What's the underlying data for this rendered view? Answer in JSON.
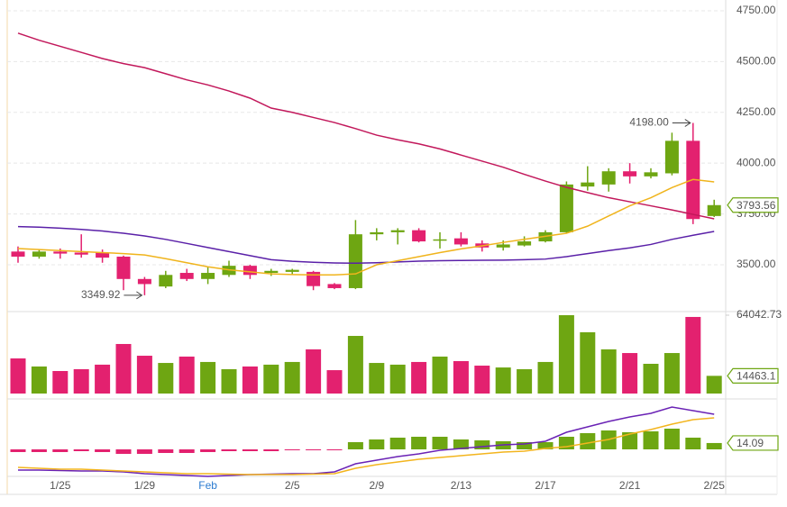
{
  "chart_data": [
    {
      "type": "candlestick",
      "categories": [
        null,
        null,
        "1/25",
        null,
        null,
        null,
        "1/29",
        null,
        null,
        "Feb",
        null,
        null,
        null,
        "2/5",
        null,
        null,
        null,
        "2/9",
        null,
        null,
        null,
        "2/13",
        null,
        null,
        null,
        "2/17",
        null,
        null,
        null,
        "2/21",
        null,
        null,
        null,
        "2/25"
      ],
      "month_label_color": "#2b7bd0",
      "open": [
        3565,
        3540,
        3565,
        3560,
        3560,
        3540,
        3430,
        3393,
        3460,
        3430,
        3450,
        3495,
        3460,
        3465,
        3465,
        3405,
        3385,
        3650,
        3660,
        3670,
        3620,
        3630,
        3605,
        3585,
        3595,
        3615,
        3660,
        3885,
        3895,
        3960,
        3935,
        3950,
        4110,
        3740
      ],
      "high": [
        3590,
        3575,
        3580,
        3650,
        3575,
        3545,
        3440,
        3470,
        3480,
        3490,
        3520,
        3500,
        3480,
        3480,
        3470,
        3410,
        3720,
        3680,
        3680,
        3680,
        3660,
        3660,
        3620,
        3620,
        3640,
        3670,
        3910,
        3985,
        3975,
        4000,
        3975,
        4150,
        4198,
        3820
      ],
      "low": [
        3510,
        3530,
        3530,
        3535,
        3510,
        3375,
        3349.92,
        3385,
        3420,
        3405,
        3440,
        3430,
        3445,
        3450,
        3375,
        3380,
        3380,
        3620,
        3600,
        3610,
        3580,
        3590,
        3565,
        3570,
        3590,
        3610,
        3655,
        3865,
        3860,
        3900,
        3925,
        3940,
        3700,
        3735
      ],
      "close": [
        3540,
        3565,
        3555,
        3550,
        3535,
        3430,
        3405,
        3450,
        3430,
        3460,
        3495,
        3450,
        3470,
        3475,
        3395,
        3385,
        3650,
        3660,
        3670,
        3615,
        3625,
        3600,
        3585,
        3600,
        3615,
        3660,
        3895,
        3905,
        3960,
        3935,
        3955,
        4110,
        3725,
        3793.56
      ],
      "up_color": "#6ea612",
      "down_color": "#e3216f",
      "series": [
        {
          "color": "#c2185b",
          "values": [
            4640,
            4605,
            4575,
            4545,
            4515,
            4490,
            4470,
            4440,
            4410,
            4385,
            4355,
            4320,
            4271,
            4250,
            4225,
            4200,
            4170,
            4138,
            4115,
            4095,
            4070,
            4040,
            4010,
            3980,
            3945,
            3912,
            3881,
            3855,
            3830,
            3810,
            3790,
            3770,
            3748,
            3726
          ]
        },
        {
          "color": "#5a20a8",
          "values": [
            3688,
            3685,
            3680,
            3674,
            3666,
            3655,
            3642,
            3625,
            3605,
            3585,
            3565,
            3545,
            3525,
            3517,
            3512,
            3509,
            3508,
            3510,
            3514,
            3518,
            3520,
            3521,
            3522,
            3523,
            3525,
            3528,
            3540,
            3555,
            3570,
            3583,
            3600,
            3625,
            3645,
            3664
          ]
        },
        {
          "color": "#f0b41c",
          "values": [
            3580,
            3575,
            3570,
            3565,
            3560,
            3555,
            3548,
            3530,
            3510,
            3490,
            3475,
            3465,
            3455,
            3452,
            3450,
            3450,
            3455,
            3500,
            3520,
            3540,
            3560,
            3578,
            3593,
            3610,
            3625,
            3640,
            3655,
            3690,
            3740,
            3790,
            3830,
            3880,
            3920,
            3908
          ]
        }
      ],
      "ylim": [
        3274,
        4803
      ],
      "yticks": [
        {
          "value": 3500,
          "label": "3500.00"
        },
        {
          "value": 3750,
          "label": "3750.00"
        },
        {
          "value": 4000,
          "label": "4000.00"
        },
        {
          "value": 4250,
          "label": "4250.00"
        },
        {
          "value": 4500,
          "label": "4500.00"
        },
        {
          "value": 4750,
          "label": "4750.00"
        }
      ],
      "grid": true,
      "annotations": [
        {
          "value": 4198,
          "label": "4198.00"
        },
        {
          "value": 3349.92,
          "label": "3349.92"
        }
      ]
    },
    {
      "type": "bar",
      "values": [
        28700,
        22100,
        18400,
        19900,
        23600,
        40500,
        30900,
        25000,
        30200,
        25800,
        19900,
        22100,
        23600,
        25800,
        36100,
        19100,
        47100,
        25000,
        23600,
        25800,
        30200,
        26500,
        22800,
        21300,
        19900,
        25800,
        64042.73,
        50100,
        36100,
        33100,
        24300,
        33100,
        62600,
        14463.1
      ],
      "ylim": [
        0,
        64042.73
      ],
      "yticks": [
        64042.73
      ]
    },
    {
      "type": "macd",
      "histogram": [
        -6,
        -6,
        -6,
        -4,
        -6,
        -10,
        -10,
        -8,
        -8,
        -6,
        -4,
        -4,
        -4,
        -2,
        -2,
        -2,
        16,
        22,
        26,
        28,
        28,
        22,
        20,
        18,
        16,
        16,
        28,
        36,
        42,
        38,
        40,
        46,
        26,
        14.09
      ],
      "up_color": "#6ea612",
      "down_color": "#e3216f",
      "series": [
        {
          "color": "#6a22b5",
          "values": [
            -46,
            -46,
            -47,
            -48,
            -48,
            -50,
            -54,
            -56,
            -58,
            -60,
            -58,
            -56,
            -55,
            -54,
            -54,
            -50,
            -32,
            -24,
            -16,
            -10,
            -2,
            2,
            6,
            10,
            12,
            18,
            38,
            50,
            62,
            72,
            80,
            94,
            86,
            78
          ]
        },
        {
          "color": "#f3b51e",
          "values": [
            -40,
            -42,
            -44,
            -44,
            -46,
            -48,
            -50,
            -52,
            -54,
            -54,
            -55,
            -56,
            -56,
            -56,
            -55,
            -54,
            -42,
            -34,
            -28,
            -22,
            -18,
            -14,
            -10,
            -6,
            -4,
            2,
            6,
            14,
            22,
            34,
            44,
            56,
            66,
            70
          ]
        }
      ],
      "ylim": [
        -60,
        106
      ]
    }
  ]
}
